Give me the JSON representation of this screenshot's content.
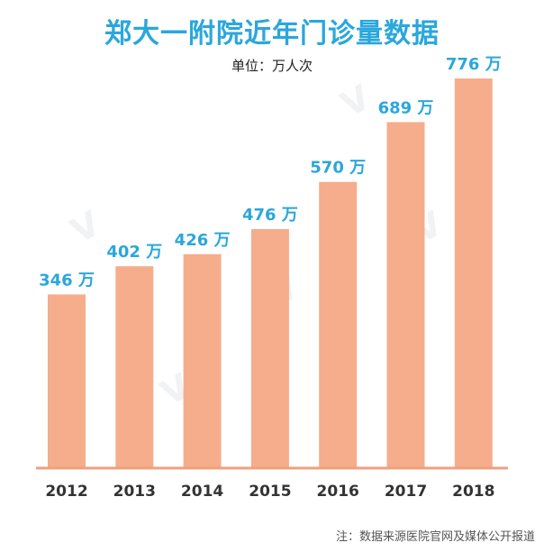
{
  "title": "郑大一附院近年门诊量数据",
  "unit_label": "单位：万人次",
  "note": "注：数据来源医院官网及媒体公开报道",
  "colors": {
    "bar": "#f5ad8c",
    "value_label": "#2aa7dc",
    "axis": "#f0a07c",
    "tick_label": "#333333",
    "title": "#2aa7dc"
  },
  "chart_data": {
    "type": "bar",
    "title": "郑大一附院近年门诊量数据",
    "ylabel": "单位：万人次",
    "categories": [
      "2012",
      "2013",
      "2014",
      "2015",
      "2016",
      "2017",
      "2018"
    ],
    "values": [
      346,
      402,
      426,
      476,
      570,
      689,
      776
    ],
    "value_labels": [
      "346 万",
      "402 万",
      "426 万",
      "476 万",
      "570 万",
      "689 万",
      "776 万"
    ],
    "ylim": [
      0,
      776
    ],
    "grid": false,
    "legend": "none"
  }
}
